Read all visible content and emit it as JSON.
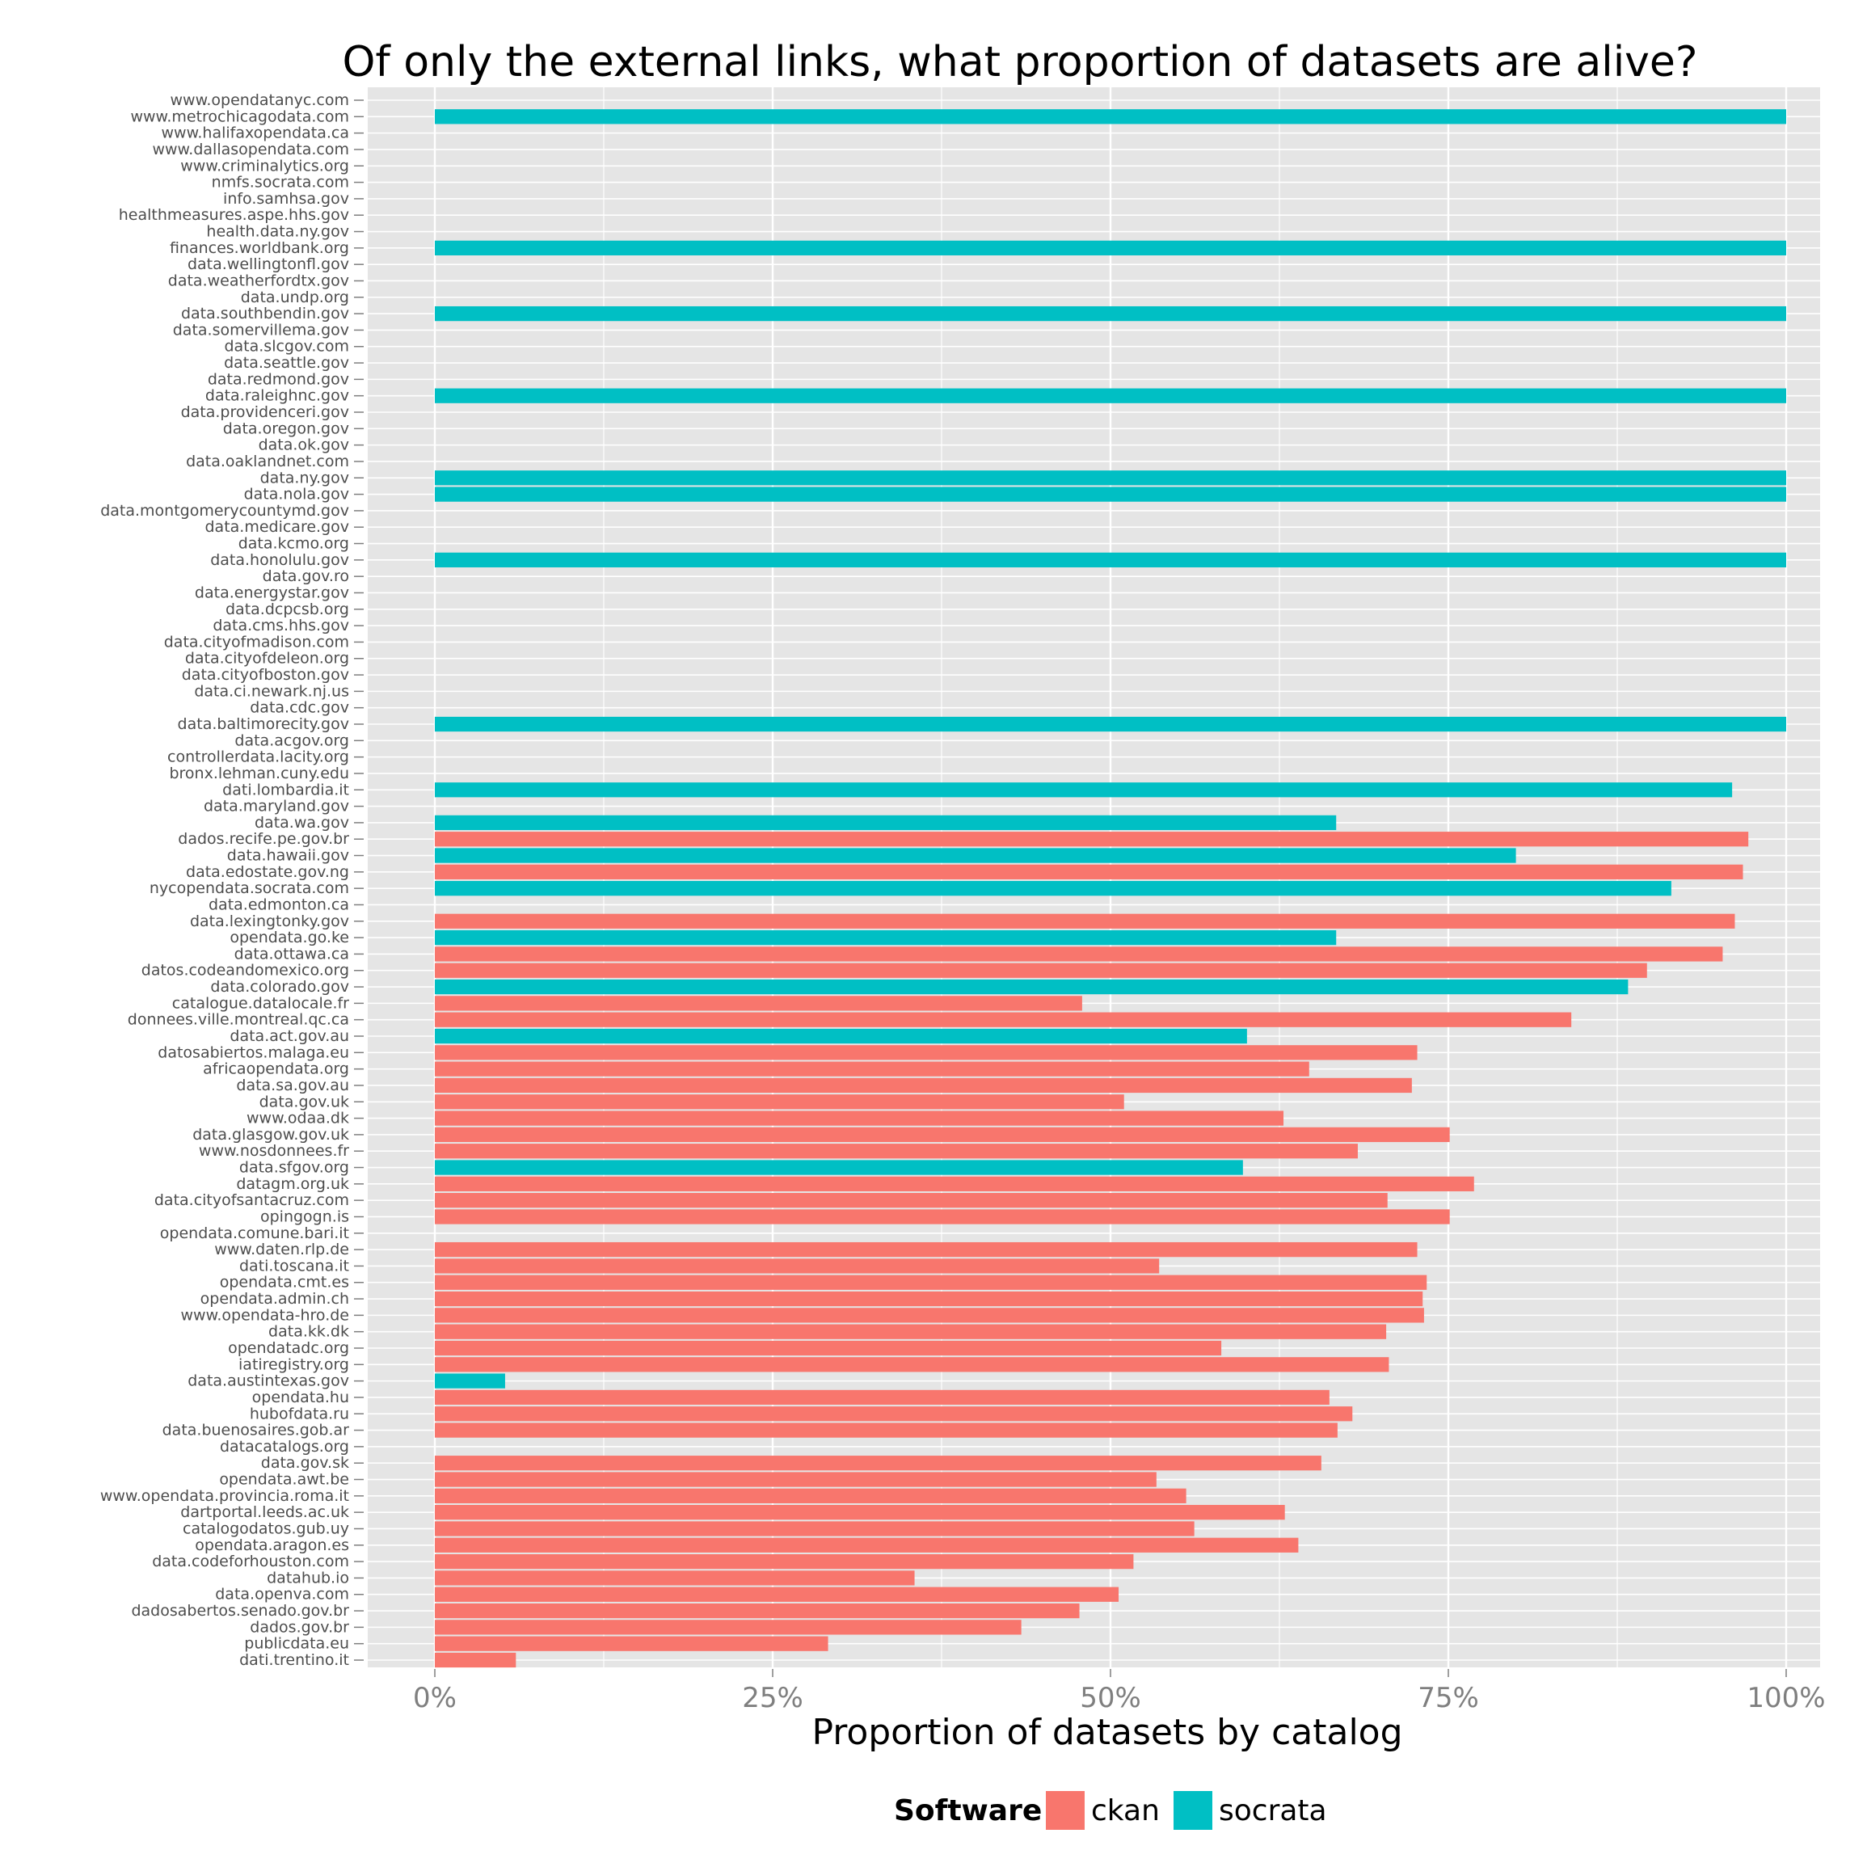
{
  "chart_data": {
    "type": "bar",
    "orientation": "horizontal",
    "title": "Of only the external links, what proportion of datasets are alive?",
    "xlabel": "Proportion of datasets by catalog",
    "xlim": [
      0,
      1
    ],
    "x_ticks": [
      "0%",
      "25%",
      "50%",
      "75%",
      "100%"
    ],
    "grid": true,
    "legend": {
      "title": "Software",
      "position": "bottom",
      "entries": [
        {
          "name": "ckan",
          "color": "#F8766D"
        },
        {
          "name": "socrata",
          "color": "#00BFC4"
        }
      ]
    },
    "categories": [
      "www.opendatanyc.com",
      "www.metrochicagodata.com",
      "www.halifaxopendata.ca",
      "www.dallasopendata.com",
      "www.criminalytics.org",
      "nmfs.socrata.com",
      "info.samhsa.gov",
      "healthmeasures.aspe.hhs.gov",
      "health.data.ny.gov",
      "finances.worldbank.org",
      "data.wellingtonfl.gov",
      "data.weatherfordtx.gov",
      "data.undp.org",
      "data.southbendin.gov",
      "data.somervillema.gov",
      "data.slcgov.com",
      "data.seattle.gov",
      "data.redmond.gov",
      "data.raleighnc.gov",
      "data.providenceri.gov",
      "data.oregon.gov",
      "data.ok.gov",
      "data.oaklandnet.com",
      "data.ny.gov",
      "data.nola.gov",
      "data.montgomerycountymd.gov",
      "data.medicare.gov",
      "data.kcmo.org",
      "data.honolulu.gov",
      "data.gov.ro",
      "data.energystar.gov",
      "data.dcpcsb.org",
      "data.cms.hhs.gov",
      "data.cityofmadison.com",
      "data.cityofdeleon.org",
      "data.cityofboston.gov",
      "data.ci.newark.nj.us",
      "data.cdc.gov",
      "data.baltimorecity.gov",
      "data.acgov.org",
      "controllerdata.lacity.org",
      "bronx.lehman.cuny.edu",
      "dati.lombardia.it",
      "data.maryland.gov",
      "data.wa.gov",
      "dados.recife.pe.gov.br",
      "data.hawaii.gov",
      "data.edostate.gov.ng",
      "nycopendata.socrata.com",
      "data.edmonton.ca",
      "data.lexingtonky.gov",
      "opendata.go.ke",
      "data.ottawa.ca",
      "datos.codeandomexico.org",
      "data.colorado.gov",
      "catalogue.datalocale.fr",
      "donnees.ville.montreal.qc.ca",
      "data.act.gov.au",
      "datosabiertos.malaga.eu",
      "africaopendata.org",
      "data.sa.gov.au",
      "data.gov.uk",
      "www.odaa.dk",
      "data.glasgow.gov.uk",
      "www.nosdonnees.fr",
      "data.sfgov.org",
      "datagm.org.uk",
      "data.cityofsantacruz.com",
      "opingogn.is",
      "opendata.comune.bari.it",
      "www.daten.rlp.de",
      "dati.toscana.it",
      "opendata.cmt.es",
      "opendata.admin.ch",
      "www.opendata-hro.de",
      "data.kk.dk",
      "opendatadc.org",
      "iatiregistry.org",
      "data.austintexas.gov",
      "opendata.hu",
      "hubofdata.ru",
      "data.buenosaires.gob.ar",
      "datacatalogs.org",
      "data.gov.sk",
      "opendata.awt.be",
      "www.opendata.provincia.roma.it",
      "dartportal.leeds.ac.uk",
      "catalogodatos.gub.uy",
      "opendata.aragon.es",
      "data.codeforhouston.com",
      "datahub.io",
      "data.openva.com",
      "dadosabertos.senado.gov.br",
      "dados.gov.br",
      "publicdata.eu",
      "dati.trentino.it"
    ],
    "values": [
      null,
      1.0,
      null,
      null,
      null,
      null,
      null,
      null,
      null,
      1.0,
      null,
      null,
      null,
      1.0,
      null,
      null,
      null,
      null,
      1.0,
      null,
      null,
      null,
      null,
      1.0,
      1.0,
      null,
      null,
      null,
      1.0,
      null,
      null,
      null,
      null,
      null,
      null,
      null,
      null,
      null,
      1.0,
      null,
      null,
      null,
      0.96,
      null,
      0.667,
      0.972,
      0.8,
      0.968,
      0.915,
      null,
      0.962,
      0.667,
      0.953,
      0.897,
      0.883,
      0.479,
      0.841,
      0.601,
      0.727,
      0.647,
      0.723,
      0.51,
      0.628,
      0.751,
      0.683,
      0.598,
      0.769,
      0.705,
      0.751,
      null,
      0.727,
      0.536,
      0.734,
      0.731,
      0.732,
      0.704,
      0.582,
      0.706,
      0.052,
      0.662,
      0.679,
      0.668,
      null,
      0.656,
      0.534,
      0.556,
      0.629,
      0.562,
      0.639,
      0.517,
      0.355,
      0.506,
      0.477,
      0.434,
      0.291,
      0.06
    ],
    "software": [
      null,
      "socrata",
      null,
      null,
      null,
      null,
      null,
      null,
      null,
      "socrata",
      null,
      null,
      null,
      "socrata",
      null,
      null,
      null,
      null,
      "socrata",
      null,
      null,
      null,
      null,
      "socrata",
      "socrata",
      null,
      null,
      null,
      "socrata",
      null,
      null,
      null,
      null,
      null,
      null,
      null,
      null,
      null,
      "socrata",
      null,
      null,
      null,
      "socrata",
      null,
      "socrata",
      "ckan",
      "socrata",
      "ckan",
      "socrata",
      null,
      "ckan",
      "socrata",
      "ckan",
      "ckan",
      "socrata",
      "ckan",
      "ckan",
      "socrata",
      "ckan",
      "ckan",
      "ckan",
      "ckan",
      "ckan",
      "ckan",
      "ckan",
      "socrata",
      "ckan",
      "ckan",
      "ckan",
      null,
      "ckan",
      "ckan",
      "ckan",
      "ckan",
      "ckan",
      "ckan",
      "ckan",
      "ckan",
      "socrata",
      "ckan",
      "ckan",
      "ckan",
      null,
      "ckan",
      "ckan",
      "ckan",
      "ckan",
      "ckan",
      "ckan",
      "ckan",
      "ckan",
      "ckan",
      "ckan",
      "ckan",
      "ckan",
      "ckan"
    ]
  }
}
